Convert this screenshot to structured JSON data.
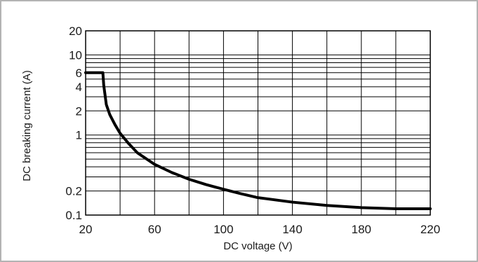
{
  "chart_data": {
    "type": "line",
    "title": "",
    "xlabel": "DC voltage (V)",
    "ylabel": "DC breaking current (A)",
    "x_scale": "linear",
    "y_scale": "log",
    "xlim": [
      20,
      220
    ],
    "ylim": [
      0.1,
      20
    ],
    "x_ticks": [
      20,
      60,
      100,
      140,
      180,
      220
    ],
    "x_tick_labels": [
      "20",
      "60",
      "100",
      "140",
      "180",
      "220"
    ],
    "y_ticks": [
      0.1,
      0.2,
      1,
      2,
      4,
      6,
      10,
      20
    ],
    "y_tick_labels": [
      "0.1",
      "0.2",
      "1",
      "2",
      "4",
      "6",
      "10",
      "20"
    ],
    "grid": true,
    "series": [
      {
        "x": [
          20,
          30,
          30.5,
          32,
          34,
          37,
          40,
          45,
          50,
          60,
          70,
          80,
          90,
          100,
          110,
          120,
          140,
          160,
          180,
          200,
          210,
          220
        ],
        "y": [
          6,
          6,
          4.2,
          2.4,
          1.8,
          1.35,
          1.05,
          0.78,
          0.6,
          0.43,
          0.34,
          0.28,
          0.24,
          0.21,
          0.185,
          0.165,
          0.145,
          0.132,
          0.124,
          0.12,
          0.12,
          0.12
        ]
      }
    ]
  }
}
